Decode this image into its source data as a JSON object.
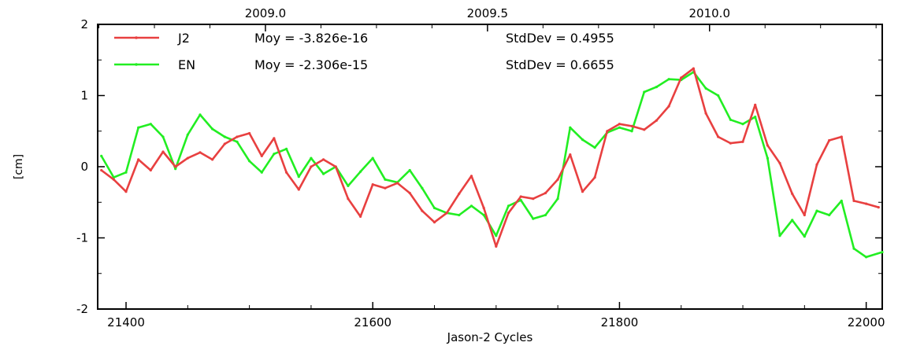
{
  "chart_data": {
    "type": "line",
    "xlabel": "Jason-2 Cycles",
    "ylabel": "[cm]",
    "xlim": [
      21377,
      22013
    ],
    "ylim": [
      -2,
      2
    ],
    "x_ticks": [
      21400,
      21600,
      21800,
      22000
    ],
    "y_ticks": [
      -2,
      -1,
      0,
      1,
      2
    ],
    "top_axis": {
      "ticks": [
        {
          "label": "2009.0",
          "cycle": 21513
        },
        {
          "label": "2009.5",
          "cycle": 21693
        },
        {
          "label": "2010.0",
          "cycle": 21873
        }
      ]
    },
    "legend": {
      "placement": "top-left",
      "entries": [
        {
          "name": "J2",
          "moy": "Moy = -3.826e-16",
          "std": "StdDev = 0.4955"
        },
        {
          "name": "EN",
          "moy": "Moy = -2.306e-15",
          "std": "StdDev = 0.6655"
        }
      ]
    },
    "series": [
      {
        "name": "J2",
        "color": "#e84040",
        "x": [
          21380,
          21390,
          21400,
          21410,
          21420,
          21430,
          21440,
          21450,
          21460,
          21470,
          21480,
          21490,
          21500,
          21510,
          21520,
          21530,
          21540,
          21550,
          21560,
          21570,
          21580,
          21590,
          21600,
          21610,
          21620,
          21630,
          21640,
          21650,
          21660,
          21670,
          21680,
          21690,
          21700,
          21710,
          21720,
          21730,
          21740,
          21750,
          21760,
          21770,
          21780,
          21790,
          21800,
          21810,
          21820,
          21830,
          21840,
          21850,
          21860,
          21870,
          21880,
          21890,
          21900,
          21910,
          21920,
          21930,
          21940,
          21950,
          21960,
          21970,
          21980,
          21990,
          22000,
          22010
        ],
        "values": [
          -0.05,
          -0.18,
          -0.35,
          0.1,
          -0.05,
          0.21,
          0.0,
          0.12,
          0.2,
          0.1,
          0.32,
          0.42,
          0.47,
          0.15,
          0.4,
          -0.08,
          -0.32,
          0.0,
          0.1,
          0.0,
          -0.45,
          -0.7,
          -0.25,
          -0.3,
          -0.23,
          -0.37,
          -0.62,
          -0.78,
          -0.65,
          -0.38,
          -0.13,
          -0.58,
          -1.12,
          -0.65,
          -0.42,
          -0.45,
          -0.37,
          -0.18,
          0.17,
          -0.35,
          -0.15,
          0.5,
          0.6,
          0.57,
          0.52,
          0.65,
          0.85,
          1.25,
          1.38,
          0.75,
          0.42,
          0.33,
          0.35,
          0.87,
          0.3,
          0.05,
          -0.38,
          -0.68,
          0.03,
          0.37,
          0.42,
          -0.48,
          -0.52,
          -0.57
        ]
      },
      {
        "name": "EN",
        "color": "#22ee22",
        "x": [
          21380,
          21390,
          21400,
          21410,
          21420,
          21430,
          21440,
          21450,
          21460,
          21470,
          21480,
          21490,
          21500,
          21510,
          21520,
          21530,
          21540,
          21550,
          21560,
          21570,
          21580,
          21590,
          21600,
          21610,
          21620,
          21630,
          21640,
          21650,
          21660,
          21670,
          21680,
          21690,
          21700,
          21710,
          21720,
          21730,
          21740,
          21750,
          21760,
          21770,
          21780,
          21790,
          21800,
          21810,
          21820,
          21830,
          21840,
          21850,
          21860,
          21870,
          21880,
          21890,
          21900,
          21910,
          21920,
          21930,
          21940,
          21950,
          21960,
          21970,
          21980,
          21990,
          22000,
          22013
        ],
        "values": [
          0.15,
          -0.15,
          -0.08,
          0.55,
          0.6,
          0.42,
          -0.03,
          0.45,
          0.73,
          0.53,
          0.42,
          0.35,
          0.08,
          -0.08,
          0.18,
          0.25,
          -0.14,
          0.12,
          -0.1,
          0.0,
          -0.27,
          -0.07,
          0.12,
          -0.18,
          -0.22,
          -0.05,
          -0.3,
          -0.58,
          -0.65,
          -0.68,
          -0.55,
          -0.68,
          -0.97,
          -0.55,
          -0.47,
          -0.73,
          -0.68,
          -0.45,
          0.55,
          0.38,
          0.27,
          0.48,
          0.55,
          0.5,
          1.05,
          1.12,
          1.23,
          1.22,
          1.33,
          1.1,
          1.0,
          0.66,
          0.6,
          0.7,
          0.12,
          -0.97,
          -0.75,
          -0.98,
          -0.62,
          -0.68,
          -0.48,
          -1.15,
          -1.27,
          -1.2
        ]
      }
    ]
  }
}
